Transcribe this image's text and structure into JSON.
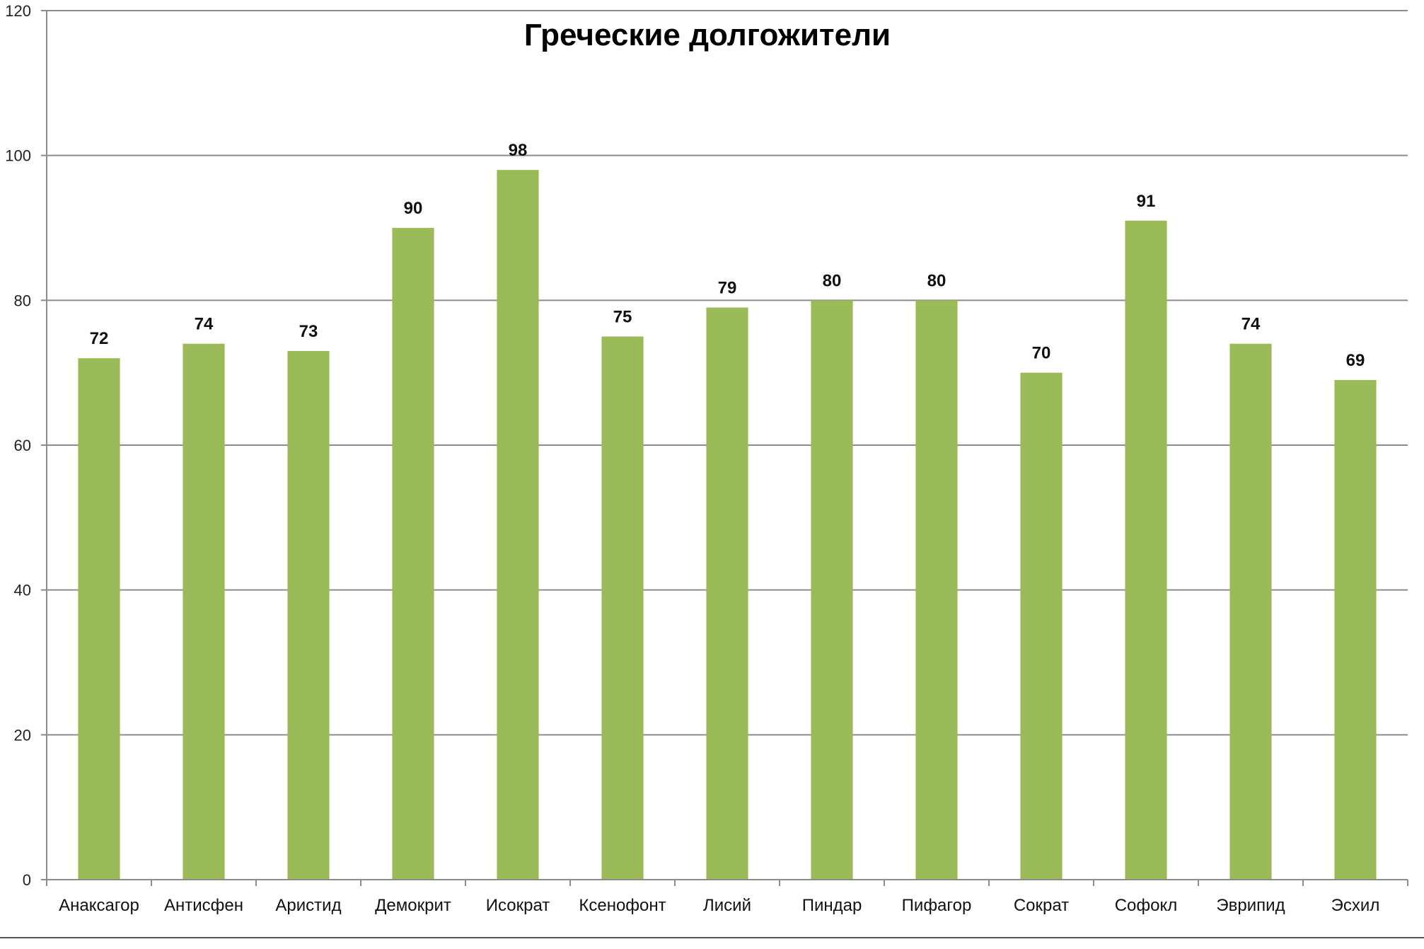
{
  "chart_data": {
    "type": "bar",
    "title": "Греческие долгожители",
    "xlabel": "",
    "ylabel": "",
    "categories": [
      "Анаксагор",
      "Антисфен",
      "Аристид",
      "Демокрит",
      "Исократ",
      "Ксенофонт",
      "Лисий",
      "Пиндар",
      "Пифагор",
      "Сократ",
      "Софокл",
      "Эврипид",
      "Эсхил"
    ],
    "values": [
      72,
      74,
      73,
      90,
      98,
      75,
      79,
      80,
      80,
      70,
      91,
      74,
      69
    ],
    "ylim": [
      0,
      120
    ],
    "yticks": [
      0,
      20,
      40,
      60,
      80,
      100,
      120
    ],
    "grid": true,
    "legend": "none",
    "bar_color": "#9BBB59",
    "grid_color": "#8C8C8C"
  }
}
